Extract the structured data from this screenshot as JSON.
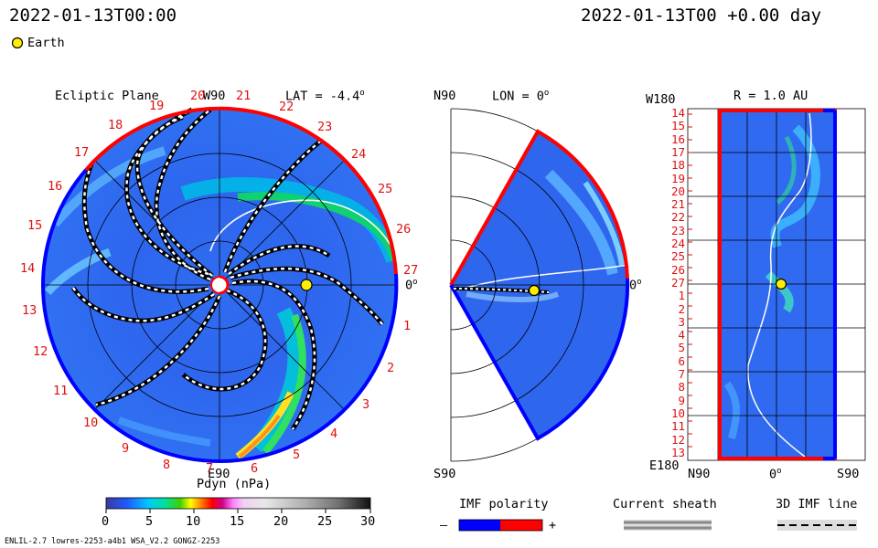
{
  "header": {
    "time_left": "2022-01-13T00:00",
    "time_right": "2022-01-13T00 +0.00 day",
    "legend_earth_label": "Earth",
    "colors": {
      "earth_marker": "#ffee00"
    }
  },
  "ecliptic_panel": {
    "title": "Ecliptic Plane",
    "top_label": "W90",
    "lat_label": "LAT = -4.4",
    "right_label": "0",
    "bottom_label": "E90",
    "rotation_labels": [
      "14",
      "15",
      "16",
      "17",
      "18",
      "19",
      "20",
      "21",
      "22",
      "23",
      "24",
      "25",
      "26",
      "27",
      "1",
      "2",
      "3",
      "4",
      "5",
      "6",
      "7",
      "8",
      "9",
      "10",
      "11",
      "12",
      "13"
    ]
  },
  "meridional_panel": {
    "top_label": "N90",
    "lon_label": "LON = 0",
    "right_label": "0",
    "bottom_label": "S90"
  },
  "latlon_panel": {
    "title": "R = 1.0 AU",
    "top_left_label": "W180",
    "bottom_left_label": "E180",
    "x_labels": [
      "N90",
      "0",
      "S90"
    ],
    "y_labels": [
      "14",
      "15",
      "16",
      "17",
      "18",
      "19",
      "20",
      "21",
      "22",
      "23",
      "24",
      "25",
      "26",
      "27",
      "1",
      "2",
      "3",
      "4",
      "5",
      "6",
      "7",
      "8",
      "9",
      "10",
      "11",
      "12",
      "13"
    ]
  },
  "colorbar": {
    "title": "Pdyn (nPa)",
    "ticks": [
      "0",
      "5",
      "10",
      "15",
      "20",
      "25",
      "30"
    ],
    "range": [
      0,
      30
    ]
  },
  "legends": {
    "imf_title": "IMF polarity",
    "imf_minus": "–",
    "imf_plus": "+",
    "sheath_title": "Current sheath",
    "imf3d_title": "3D IMF line",
    "colors": {
      "imf_negative": "#0000ff",
      "imf_positive": "#ff0000",
      "sheath": "#888888"
    }
  },
  "footer": {
    "left_text": "ENLIL-2.7 lowres-2253-a4b1 WSA_V2.2 GONGZ-2253"
  },
  "chart_data": {
    "type": "heatmap",
    "variable": "Pdyn (nPa)",
    "value_range": [
      0,
      30
    ],
    "panels": [
      "Ecliptic Plane",
      "LON = 0",
      "R = 1.0 AU"
    ],
    "earth": {
      "lat_deg": -4.4,
      "lon_deg": 0,
      "r_au": 1.0
    }
  }
}
